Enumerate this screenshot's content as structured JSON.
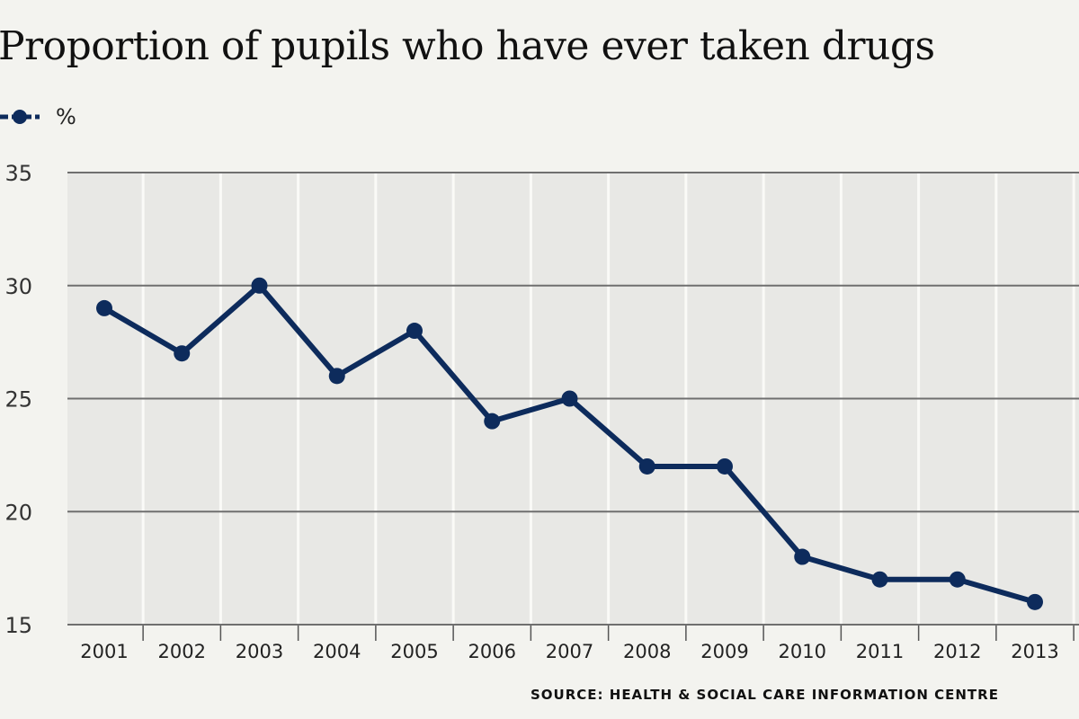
{
  "chart_data": {
    "type": "line",
    "title": "Proportion of pupils who have ever taken drugs",
    "categories": [
      "2001",
      "2002",
      "2003",
      "2004",
      "2005",
      "2006",
      "2007",
      "2008",
      "2009",
      "2010",
      "2011",
      "2012",
      "2013"
    ],
    "series": [
      {
        "name": "%",
        "values": [
          29,
          27,
          30,
          26,
          28,
          24,
          25,
          22,
          22,
          18,
          17,
          17,
          16
        ]
      }
    ],
    "yticks": [
      "35",
      "30",
      "25",
      "20",
      "15"
    ],
    "ylim": [
      15,
      35
    ],
    "xlabel": "",
    "ylabel": "",
    "grid": true,
    "legend_position": "top-left",
    "source": "SOURCE: HEALTH & SOCIAL CARE INFORMATION CENTRE",
    "colors": {
      "line": "#0d2b5c",
      "plot_background": "#e8e8e5",
      "gridline": "#6f6f6f",
      "column_divider": "#fafaf7",
      "page_background": "#f3f3ef"
    }
  }
}
